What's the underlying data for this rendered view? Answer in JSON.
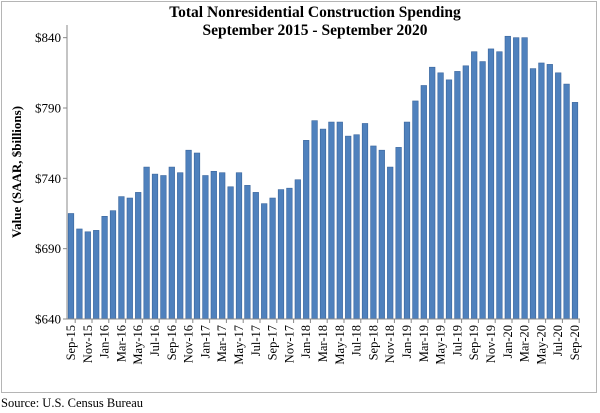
{
  "chart_data": {
    "type": "bar",
    "title": "Total Nonresidential Construction Spending",
    "subtitle": "September 2015 - September 2020",
    "xlabel": "",
    "ylabel": "Value (SAAR, $billions)",
    "ylim": [
      640,
      849
    ],
    "yticks": [
      640,
      690,
      740,
      790,
      840
    ],
    "ytick_labels": [
      "$640",
      "$690",
      "$740",
      "$790",
      "$840"
    ],
    "grid": false,
    "bar_color": "#4f81bd",
    "categories": [
      "Sep-15",
      "Oct-15",
      "Nov-15",
      "Dec-15",
      "Jan-16",
      "Feb-16",
      "Mar-16",
      "Apr-16",
      "May-16",
      "Jun-16",
      "Jul-16",
      "Aug-16",
      "Sep-16",
      "Oct-16",
      "Nov-16",
      "Dec-16",
      "Jan-17",
      "Feb-17",
      "Mar-17",
      "Apr-17",
      "May-17",
      "Jun-17",
      "Jul-17",
      "Aug-17",
      "Sep-17",
      "Oct-17",
      "Nov-17",
      "Dec-17",
      "Jan-18",
      "Feb-18",
      "Mar-18",
      "Apr-18",
      "May-18",
      "Jun-18",
      "Jul-18",
      "Aug-18",
      "Sep-18",
      "Oct-18",
      "Nov-18",
      "Dec-18",
      "Jan-19",
      "Feb-19",
      "Mar-19",
      "Apr-19",
      "May-19",
      "Jun-19",
      "Jul-19",
      "Aug-19",
      "Sep-19",
      "Oct-19",
      "Nov-19",
      "Dec-19",
      "Jan-20",
      "Feb-20",
      "Mar-20",
      "Apr-20",
      "May-20",
      "Jun-20",
      "Jul-20",
      "Aug-20",
      "Sep-20"
    ],
    "xtick_labels": [
      "Sep-15",
      "Nov-15",
      "Jan-16",
      "Mar-16",
      "May-16",
      "Jul-16",
      "Sep-16",
      "Nov-16",
      "Jan-17",
      "Mar-17",
      "May-17",
      "Jul-17",
      "Sep-17",
      "Nov-17",
      "Jan-18",
      "Mar-18",
      "May-18",
      "Jul-18",
      "Sep-18",
      "Nov-18",
      "Jan-19",
      "Mar-19",
      "May-19",
      "Jul-19",
      "Sep-19",
      "Nov-19",
      "Jan-20",
      "Mar-20",
      "May-20",
      "Jul-20",
      "Sep-20"
    ],
    "values": [
      715,
      704,
      702,
      703,
      713,
      717,
      727,
      726,
      730,
      748,
      743,
      742,
      748,
      744,
      760,
      758,
      742,
      745,
      744,
      734,
      744,
      735,
      730,
      722,
      726,
      732,
      733,
      739,
      767,
      781,
      775,
      780,
      780,
      770,
      771,
      779,
      763,
      760,
      748,
      762,
      780,
      795,
      806,
      819,
      815,
      810,
      816,
      820,
      830,
      823,
      832,
      830,
      841,
      840,
      840,
      818,
      822,
      821,
      815,
      807,
      794
    ]
  },
  "source": "Source:  U.S. Census Bureau"
}
